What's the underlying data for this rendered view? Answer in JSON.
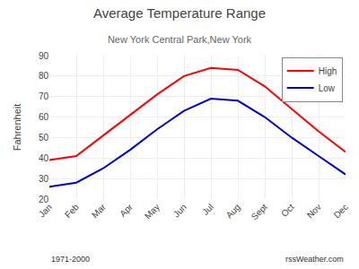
{
  "chart_data": {
    "type": "line",
    "title": "Average Temperature Range",
    "subtitle": "New York Central Park,New York",
    "y_label": "Fahrenheit",
    "categories": [
      "Jan",
      "Feb",
      "Mar",
      "Apr",
      "May",
      "Jun",
      "Jul",
      "Aug",
      "Sept",
      "Oct",
      "Nov",
      "Dec"
    ],
    "series": [
      {
        "name": "High",
        "color": "#ff0000",
        "values": [
          39,
          41,
          51,
          61,
          71,
          80,
          84,
          83,
          75,
          64,
          53,
          43
        ]
      },
      {
        "name": "Low",
        "color": "#0000cc",
        "values": [
          26,
          28,
          35,
          44,
          54,
          63,
          69,
          68,
          60,
          50,
          41,
          32
        ]
      }
    ],
    "ylim": [
      20,
      90
    ],
    "yticks": [
      20,
      30,
      40,
      50,
      60,
      70,
      80,
      90
    ],
    "grid": true,
    "legend": "upper right",
    "annotations": [
      "1971-2000",
      "rssWeather.com"
    ]
  }
}
